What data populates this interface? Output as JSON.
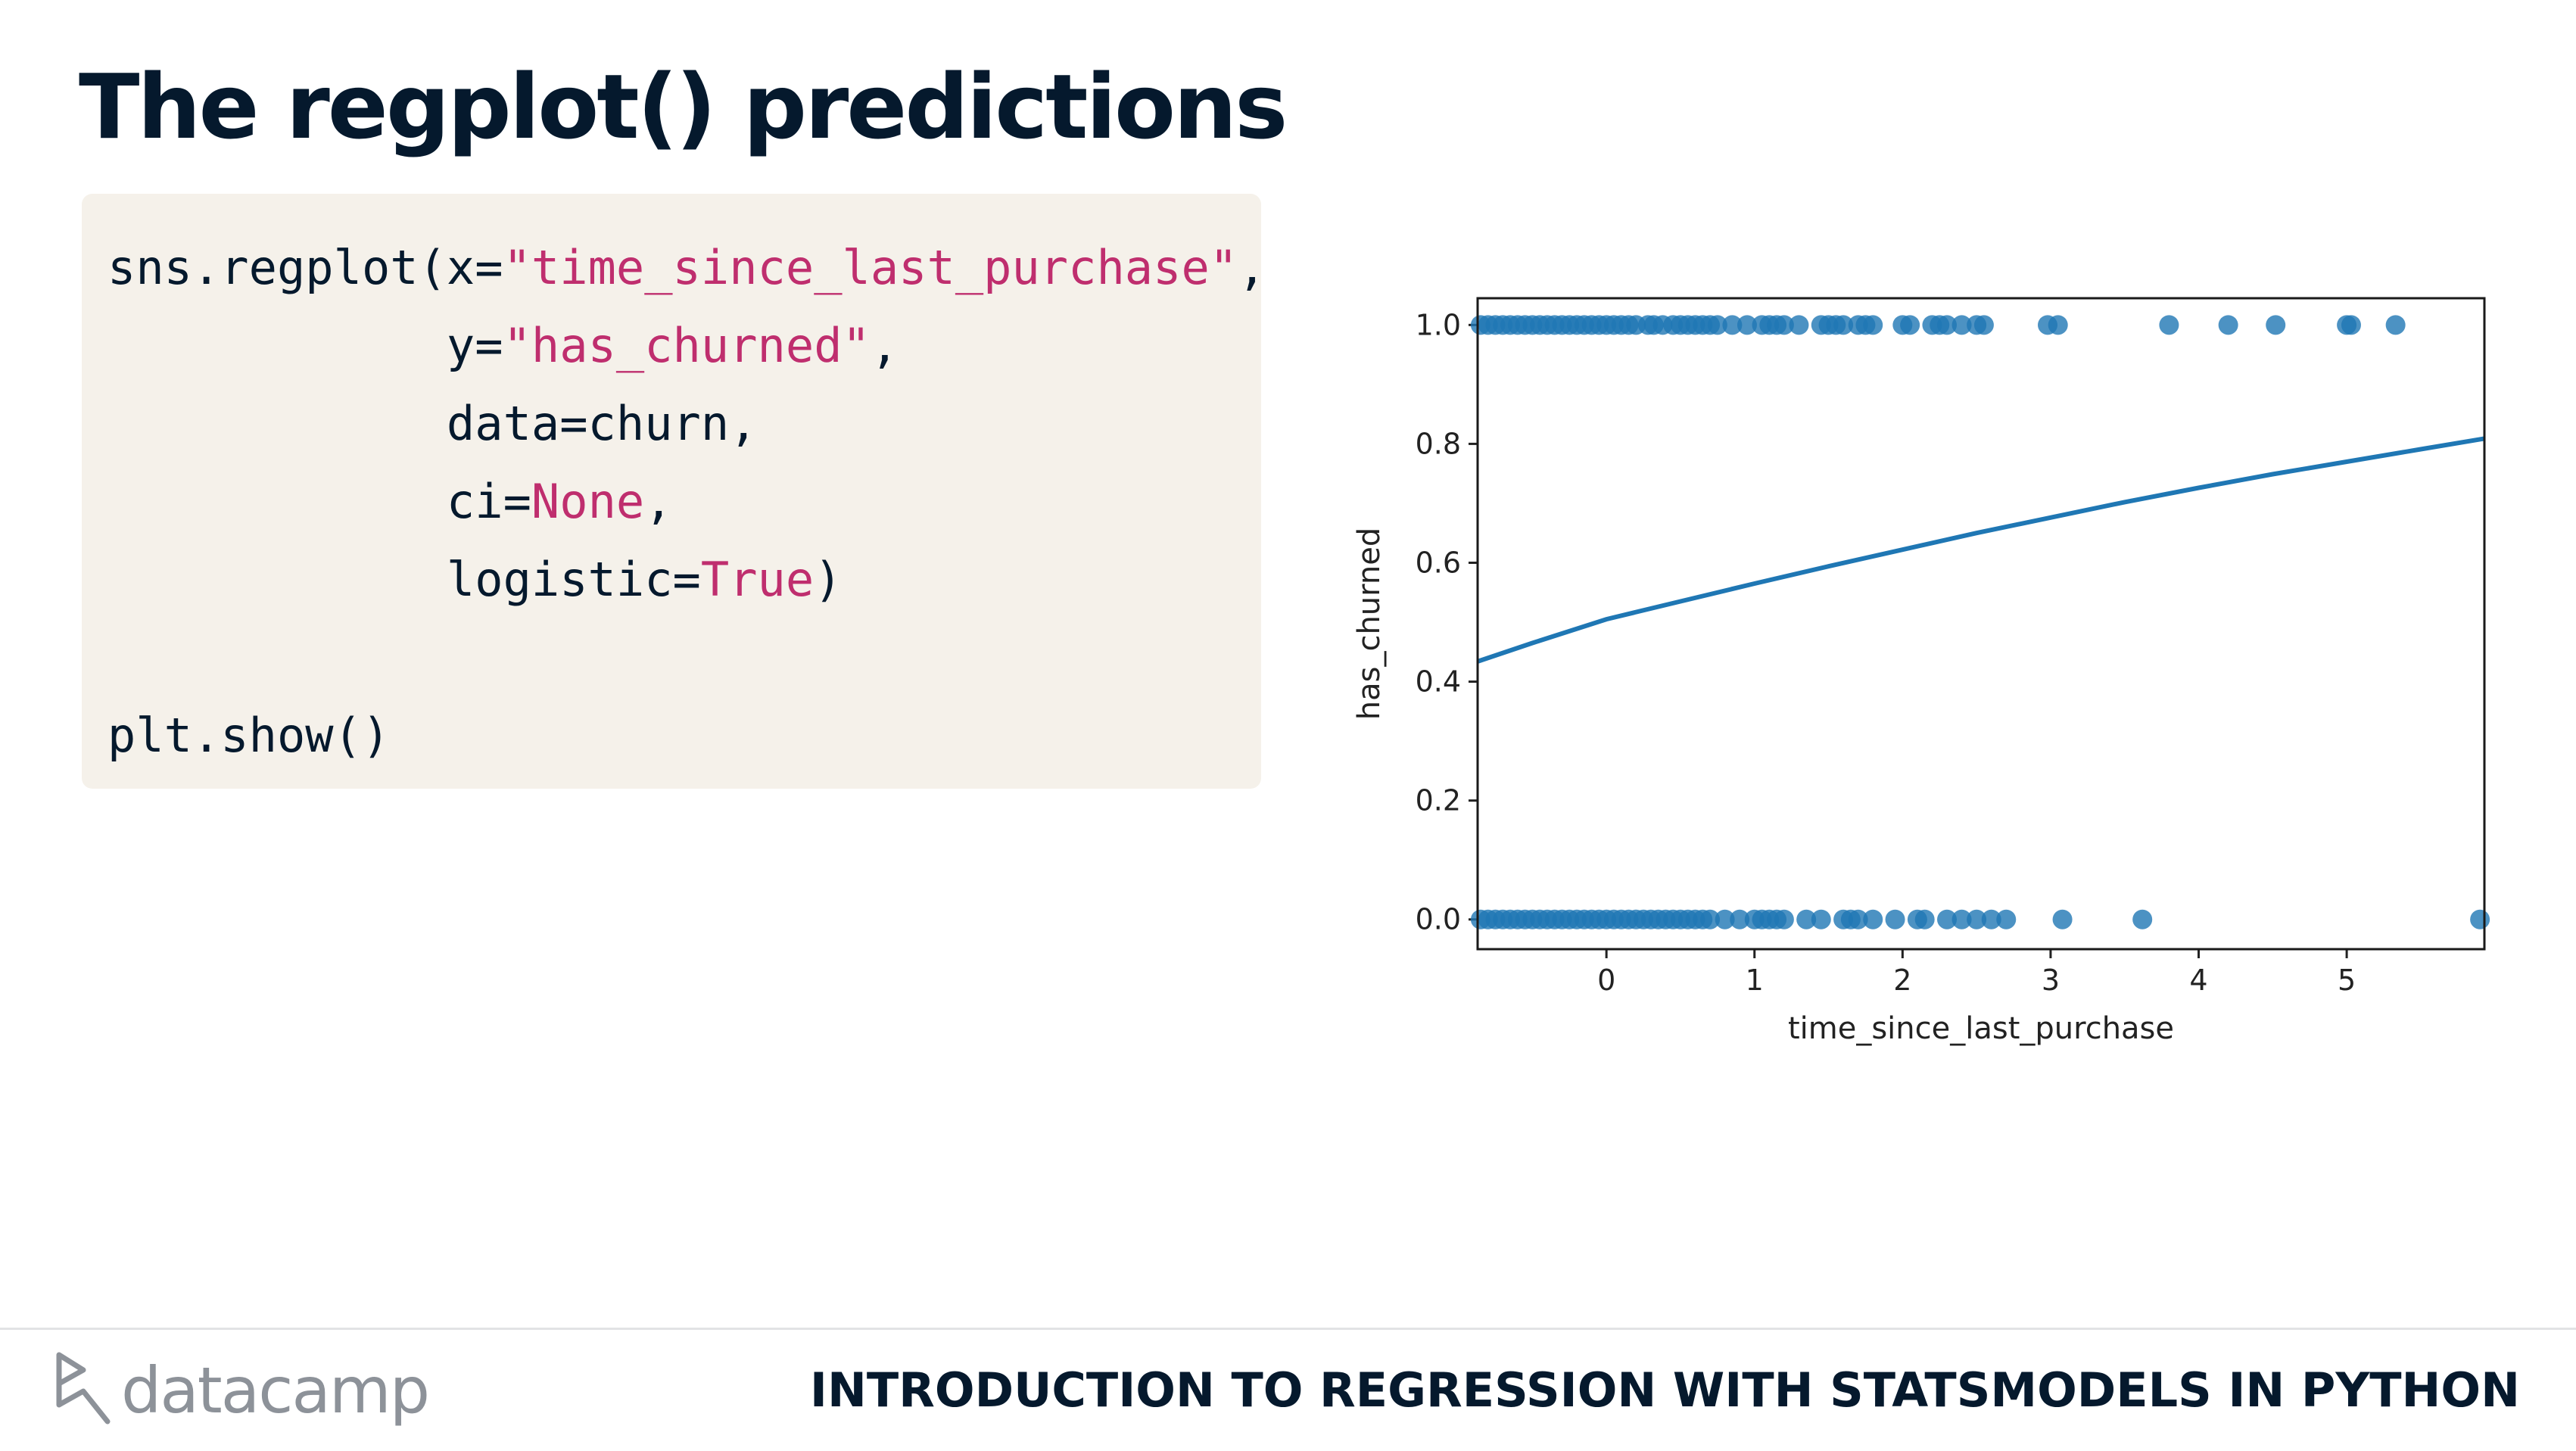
{
  "slide": {
    "title": "The regplot() predictions"
  },
  "code": {
    "l1_a": "sns.regplot(x=",
    "l1_str": "\"time_since_last_purchase\"",
    "l1_b": ",",
    "l2_a": "            y=",
    "l2_str": "\"has_churned\"",
    "l2_b": ",",
    "l3": "            data=churn,",
    "l4_a": "            ci=",
    "l4_kw": "None",
    "l4_b": ",",
    "l5_a": "            logistic=",
    "l5_kw": "True",
    "l5_b": ")",
    "l7": "plt.show()"
  },
  "footer": {
    "logo_text": "datacamp",
    "course_title": "INTRODUCTION TO REGRESSION WITH STATSMODELS IN PYTHON"
  },
  "colors": {
    "title": "#05192d",
    "code_bg": "#f5f1ea",
    "code_string": "#bf2e6e",
    "point": "#1f77b4"
  },
  "chart_data": {
    "type": "scatter",
    "xlabel": "time_since_last_purchase",
    "ylabel": "has_churned",
    "xlim": [
      -0.87,
      5.93
    ],
    "ylim": [
      -0.05,
      1.045
    ],
    "xticks": [
      0,
      1,
      2,
      3,
      4,
      5
    ],
    "yticks": [
      0.0,
      0.2,
      0.4,
      0.6,
      0.8,
      1.0
    ],
    "ytick_labels": [
      "0.0",
      "0.2",
      "0.4",
      "0.6",
      "0.8",
      "1.0"
    ],
    "grid": false,
    "series": [
      {
        "x": [
          -0.85,
          -0.8,
          -0.75,
          -0.7,
          -0.65,
          -0.6,
          -0.55,
          -0.5,
          -0.45,
          -0.4,
          -0.35,
          -0.3,
          -0.25,
          -0.2,
          -0.15,
          -0.1,
          -0.05,
          0.0,
          0.05,
          0.1,
          0.15,
          0.2,
          0.28,
          0.32,
          0.38,
          0.45,
          0.5,
          0.55,
          0.6,
          0.65,
          0.7,
          0.75,
          0.85,
          0.95,
          1.05,
          1.1,
          1.15,
          1.2,
          1.3,
          1.45,
          1.5,
          1.55,
          1.6,
          1.7,
          1.75,
          1.8,
          2.0,
          2.05,
          2.2,
          2.25,
          2.3,
          2.4,
          2.5,
          2.55,
          2.98,
          3.05,
          3.8,
          4.2,
          4.52,
          5.0,
          5.03,
          5.33
        ],
        "y": [
          1,
          1,
          1,
          1,
          1,
          1,
          1,
          1,
          1,
          1,
          1,
          1,
          1,
          1,
          1,
          1,
          1,
          1,
          1,
          1,
          1,
          1,
          1,
          1,
          1,
          1,
          1,
          1,
          1,
          1,
          1,
          1,
          1,
          1,
          1,
          1,
          1,
          1,
          1,
          1,
          1,
          1,
          1,
          1,
          1,
          1,
          1,
          1,
          1,
          1,
          1,
          1,
          1,
          1,
          1,
          1,
          1,
          1,
          1,
          1,
          1,
          1
        ]
      },
      {
        "x": [
          -0.85,
          -0.8,
          -0.75,
          -0.7,
          -0.65,
          -0.6,
          -0.55,
          -0.5,
          -0.45,
          -0.4,
          -0.35,
          -0.3,
          -0.25,
          -0.2,
          -0.15,
          -0.1,
          -0.05,
          0.0,
          0.05,
          0.1,
          0.15,
          0.2,
          0.25,
          0.3,
          0.35,
          0.4,
          0.45,
          0.5,
          0.55,
          0.6,
          0.65,
          0.7,
          0.8,
          0.9,
          1.0,
          1.05,
          1.1,
          1.15,
          1.2,
          1.35,
          1.45,
          1.6,
          1.65,
          1.7,
          1.8,
          1.95,
          2.1,
          2.15,
          2.3,
          2.4,
          2.5,
          2.6,
          2.7,
          3.08,
          3.62,
          5.9
        ],
        "y": [
          0,
          0,
          0,
          0,
          0,
          0,
          0,
          0,
          0,
          0,
          0,
          0,
          0,
          0,
          0,
          0,
          0,
          0,
          0,
          0,
          0,
          0,
          0,
          0,
          0,
          0,
          0,
          0,
          0,
          0,
          0,
          0,
          0,
          0,
          0,
          0,
          0,
          0,
          0,
          0,
          0,
          0,
          0,
          0,
          0,
          0,
          0,
          0,
          0,
          0,
          0,
          0,
          0,
          0,
          0,
          0
        ]
      }
    ],
    "logistic_curve": {
      "x": [
        -0.87,
        -0.5,
        0.0,
        0.5,
        1.0,
        1.5,
        2.0,
        2.5,
        3.0,
        3.5,
        4.0,
        4.5,
        5.0,
        5.5,
        5.93
      ],
      "y": [
        0.434,
        0.465,
        0.505,
        0.535,
        0.565,
        0.594,
        0.622,
        0.65,
        0.676,
        0.702,
        0.726,
        0.749,
        0.77,
        0.791,
        0.809
      ]
    }
  }
}
